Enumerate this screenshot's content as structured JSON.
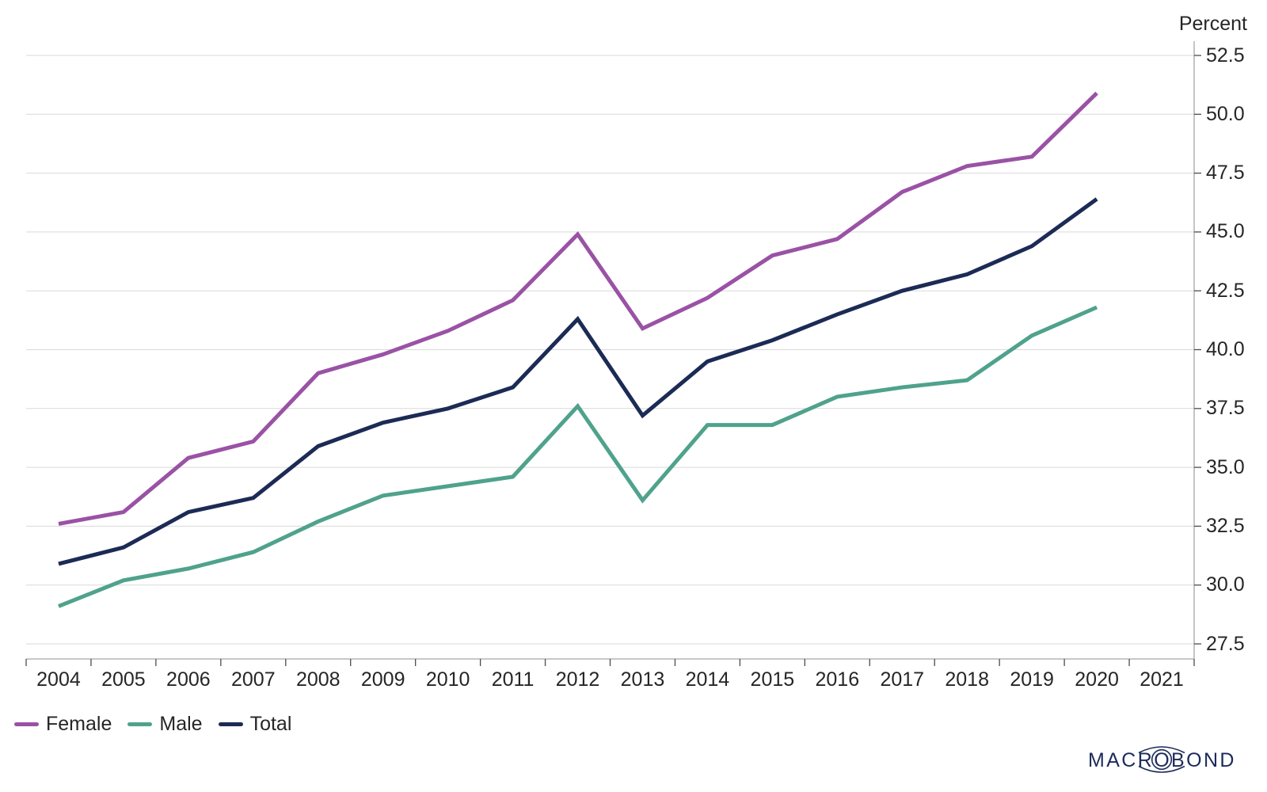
{
  "chart_data": {
    "type": "line",
    "title": "",
    "ylabel": "Percent",
    "categories": [
      "2004",
      "2005",
      "2006",
      "2007",
      "2008",
      "2009",
      "2010",
      "2011",
      "2012",
      "2013",
      "2014",
      "2015",
      "2016",
      "2017",
      "2018",
      "2019",
      "2020",
      "2021"
    ],
    "x": [
      2004,
      2005,
      2006,
      2007,
      2008,
      2009,
      2010,
      2011,
      2012,
      2013,
      2014,
      2015,
      2016,
      2017,
      2018,
      2019,
      2020
    ],
    "series": [
      {
        "name": "Female",
        "color": "#9a52a5",
        "values": [
          32.6,
          33.1,
          35.4,
          36.1,
          39.0,
          39.8,
          40.8,
          42.1,
          44.9,
          40.9,
          42.2,
          44.0,
          44.7,
          46.7,
          47.8,
          48.2,
          50.9
        ]
      },
      {
        "name": "Male",
        "color": "#4fa28c",
        "values": [
          29.1,
          30.2,
          30.7,
          31.4,
          32.7,
          33.8,
          34.2,
          34.6,
          37.6,
          33.6,
          36.8,
          36.8,
          38.0,
          38.4,
          38.7,
          40.6,
          41.8
        ]
      },
      {
        "name": "Total",
        "color": "#1c2b55",
        "values": [
          30.9,
          31.6,
          33.1,
          33.7,
          35.9,
          36.9,
          37.5,
          38.4,
          41.3,
          37.2,
          39.5,
          40.4,
          41.5,
          42.5,
          43.2,
          44.4,
          46.4
        ]
      }
    ],
    "ylim": [
      27.5,
      52.5
    ],
    "yticks": [
      52.5,
      50.0,
      47.5,
      45.0,
      42.5,
      40.0,
      37.5,
      35.0,
      32.5,
      30.0,
      27.5
    ],
    "grid": true,
    "legend_position": "bottom-left",
    "y_axis_side": "right"
  },
  "style": {
    "grid_color": "#d9d9d9",
    "axis_color": "#a6a6a6",
    "tick_color": "#4d4d4d",
    "text_color": "#262626",
    "logo_color": "#1c2b5a"
  },
  "branding": {
    "logo_text": "MACROBOND"
  }
}
